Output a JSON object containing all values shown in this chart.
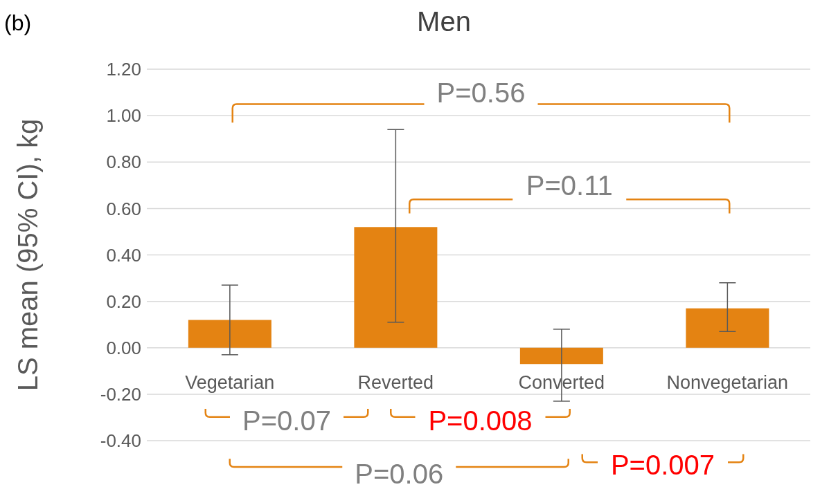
{
  "chart_data": {
    "type": "bar",
    "title": "Men",
    "ylabel": "LS mean (95% CI), kg",
    "categories": [
      "Vegetarian",
      "Reverted",
      "Converted",
      "Nonvegetarian"
    ],
    "values": [
      0.12,
      0.52,
      -0.07,
      0.17
    ],
    "color": "#e48312",
    "errors": [
      [
        -0.03,
        0.27
      ],
      [
        0.11,
        0.94
      ],
      [
        -0.23,
        0.08
      ],
      [
        0.07,
        0.28
      ]
    ],
    "ylim": [
      -0.4,
      1.2
    ],
    "yticks": [
      {
        "value": -0.4,
        "label": "-0.40"
      },
      {
        "value": -0.2,
        "label": "-0.20"
      },
      {
        "value": 0,
        "label": "0.00"
      },
      {
        "value": 0.2,
        "label": "0.20"
      },
      {
        "value": 0.4,
        "label": "0.40"
      },
      {
        "value": 0.6,
        "label": "0.60"
      },
      {
        "value": 0.8,
        "label": "0.80"
      },
      {
        "value": 1.0,
        "label": "1.00"
      },
      {
        "value": 1.2,
        "label": "1.20"
      }
    ],
    "grid": "y",
    "annotations": [
      "(b)",
      "P=0.56",
      "P=0.11",
      "P=0.07",
      "P=0.008",
      "P=0.06",
      "P=0.007"
    ]
  }
}
